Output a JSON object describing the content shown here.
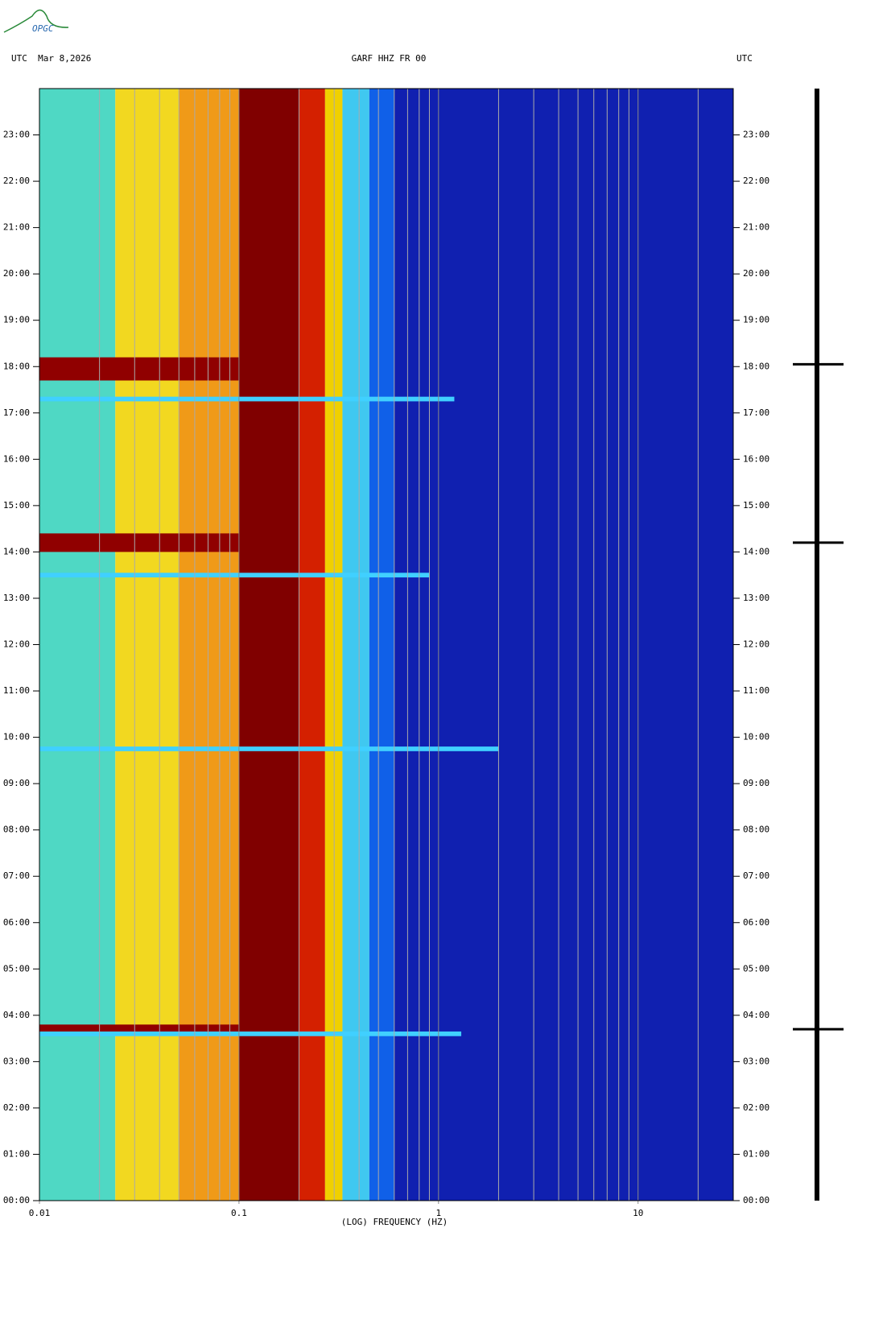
{
  "logo": "OPGC",
  "chart_data": {
    "type": "spectrogram",
    "header_left": "UTC  Mar 8,2026",
    "title": "GARF HHZ FR 00",
    "header_right": "UTC",
    "x_label": "(LOG) FREQUENCY (HZ)",
    "xscale": "log",
    "xlim": [
      0.01,
      30
    ],
    "xticks": [
      {
        "value": 0.01,
        "label": "0.01"
      },
      {
        "value": 0.1,
        "label": "0.1"
      },
      1,
      10
    ],
    "minor_xticks": [
      0.02,
      0.03,
      0.04,
      0.05,
      0.06,
      0.07,
      0.08,
      0.09,
      0.2,
      0.3,
      0.4,
      0.5,
      0.6,
      0.7,
      0.8,
      0.9,
      2,
      3,
      4,
      5,
      6,
      7,
      8,
      9,
      20
    ],
    "ylim": [
      0,
      24
    ],
    "yticks": [
      {
        "value": 0,
        "label": "00:00"
      },
      {
        "value": 1,
        "label": "01:00"
      },
      {
        "value": 2,
        "label": "02:00"
      },
      {
        "value": 3,
        "label": "03:00"
      },
      {
        "value": 4,
        "label": "04:00"
      },
      {
        "value": 5,
        "label": "05:00"
      },
      {
        "value": 6,
        "label": "06:00"
      },
      {
        "value": 7,
        "label": "07:00"
      },
      {
        "value": 8,
        "label": "08:00"
      },
      {
        "value": 9,
        "label": "09:00"
      },
      {
        "value": 10,
        "label": "10:00"
      },
      {
        "value": 11,
        "label": "11:00"
      },
      {
        "value": 12,
        "label": "12:00"
      },
      {
        "value": 13,
        "label": "13:00"
      },
      {
        "value": 14,
        "label": "14:00"
      },
      {
        "value": 15,
        "label": "15:00"
      },
      {
        "value": 16,
        "label": "16:00"
      },
      {
        "value": 17,
        "label": "17:00"
      },
      {
        "value": 18,
        "label": "18:00"
      },
      {
        "value": 19,
        "label": "19:00"
      },
      {
        "value": 20,
        "label": "20:00"
      },
      {
        "value": 21,
        "label": "21:00"
      },
      {
        "value": 22,
        "label": "22:00"
      },
      {
        "value": 23,
        "label": "23:00"
      }
    ],
    "frequency_bands": [
      {
        "from": 0.01,
        "to": 0.024,
        "color": "#4fd8c4"
      },
      {
        "from": 0.024,
        "to": 0.05,
        "color": "#f2d820"
      },
      {
        "from": 0.05,
        "to": 0.1,
        "color": "#f09a18"
      },
      {
        "from": 0.1,
        "to": 0.2,
        "color": "#800000"
      },
      {
        "from": 0.2,
        "to": 0.27,
        "color": "#d42000"
      },
      {
        "from": 0.27,
        "to": 0.33,
        "color": "#f0d000"
      },
      {
        "from": 0.33,
        "to": 0.45,
        "color": "#40c8f0"
      },
      {
        "from": 0.45,
        "to": 0.6,
        "color": "#1060e8"
      },
      {
        "from": 0.6,
        "to": 30,
        "color": "#1020b0"
      }
    ],
    "events": [
      {
        "start": 17.7,
        "end": 18.2,
        "fmax": 0.1,
        "color": "#900000"
      },
      {
        "start": 14.0,
        "end": 14.4,
        "fmax": 0.1,
        "color": "#900000"
      },
      {
        "start": 3.6,
        "end": 3.8,
        "fmax": 0.1,
        "color": "#900000"
      },
      {
        "start": 17.25,
        "end": 17.35,
        "fmax": 1.2,
        "color": "#40d0ff"
      },
      {
        "start": 13.45,
        "end": 13.55,
        "fmax": 0.9,
        "color": "#40d0ff"
      },
      {
        "start": 9.7,
        "end": 9.8,
        "fmax": 2,
        "color": "#40d0ff"
      },
      {
        "start": 3.55,
        "end": 3.65,
        "fmax": 1.3,
        "color": "#40d0ff"
      }
    ],
    "trace_spikes": [
      18.05,
      14.2,
      3.7
    ]
  }
}
